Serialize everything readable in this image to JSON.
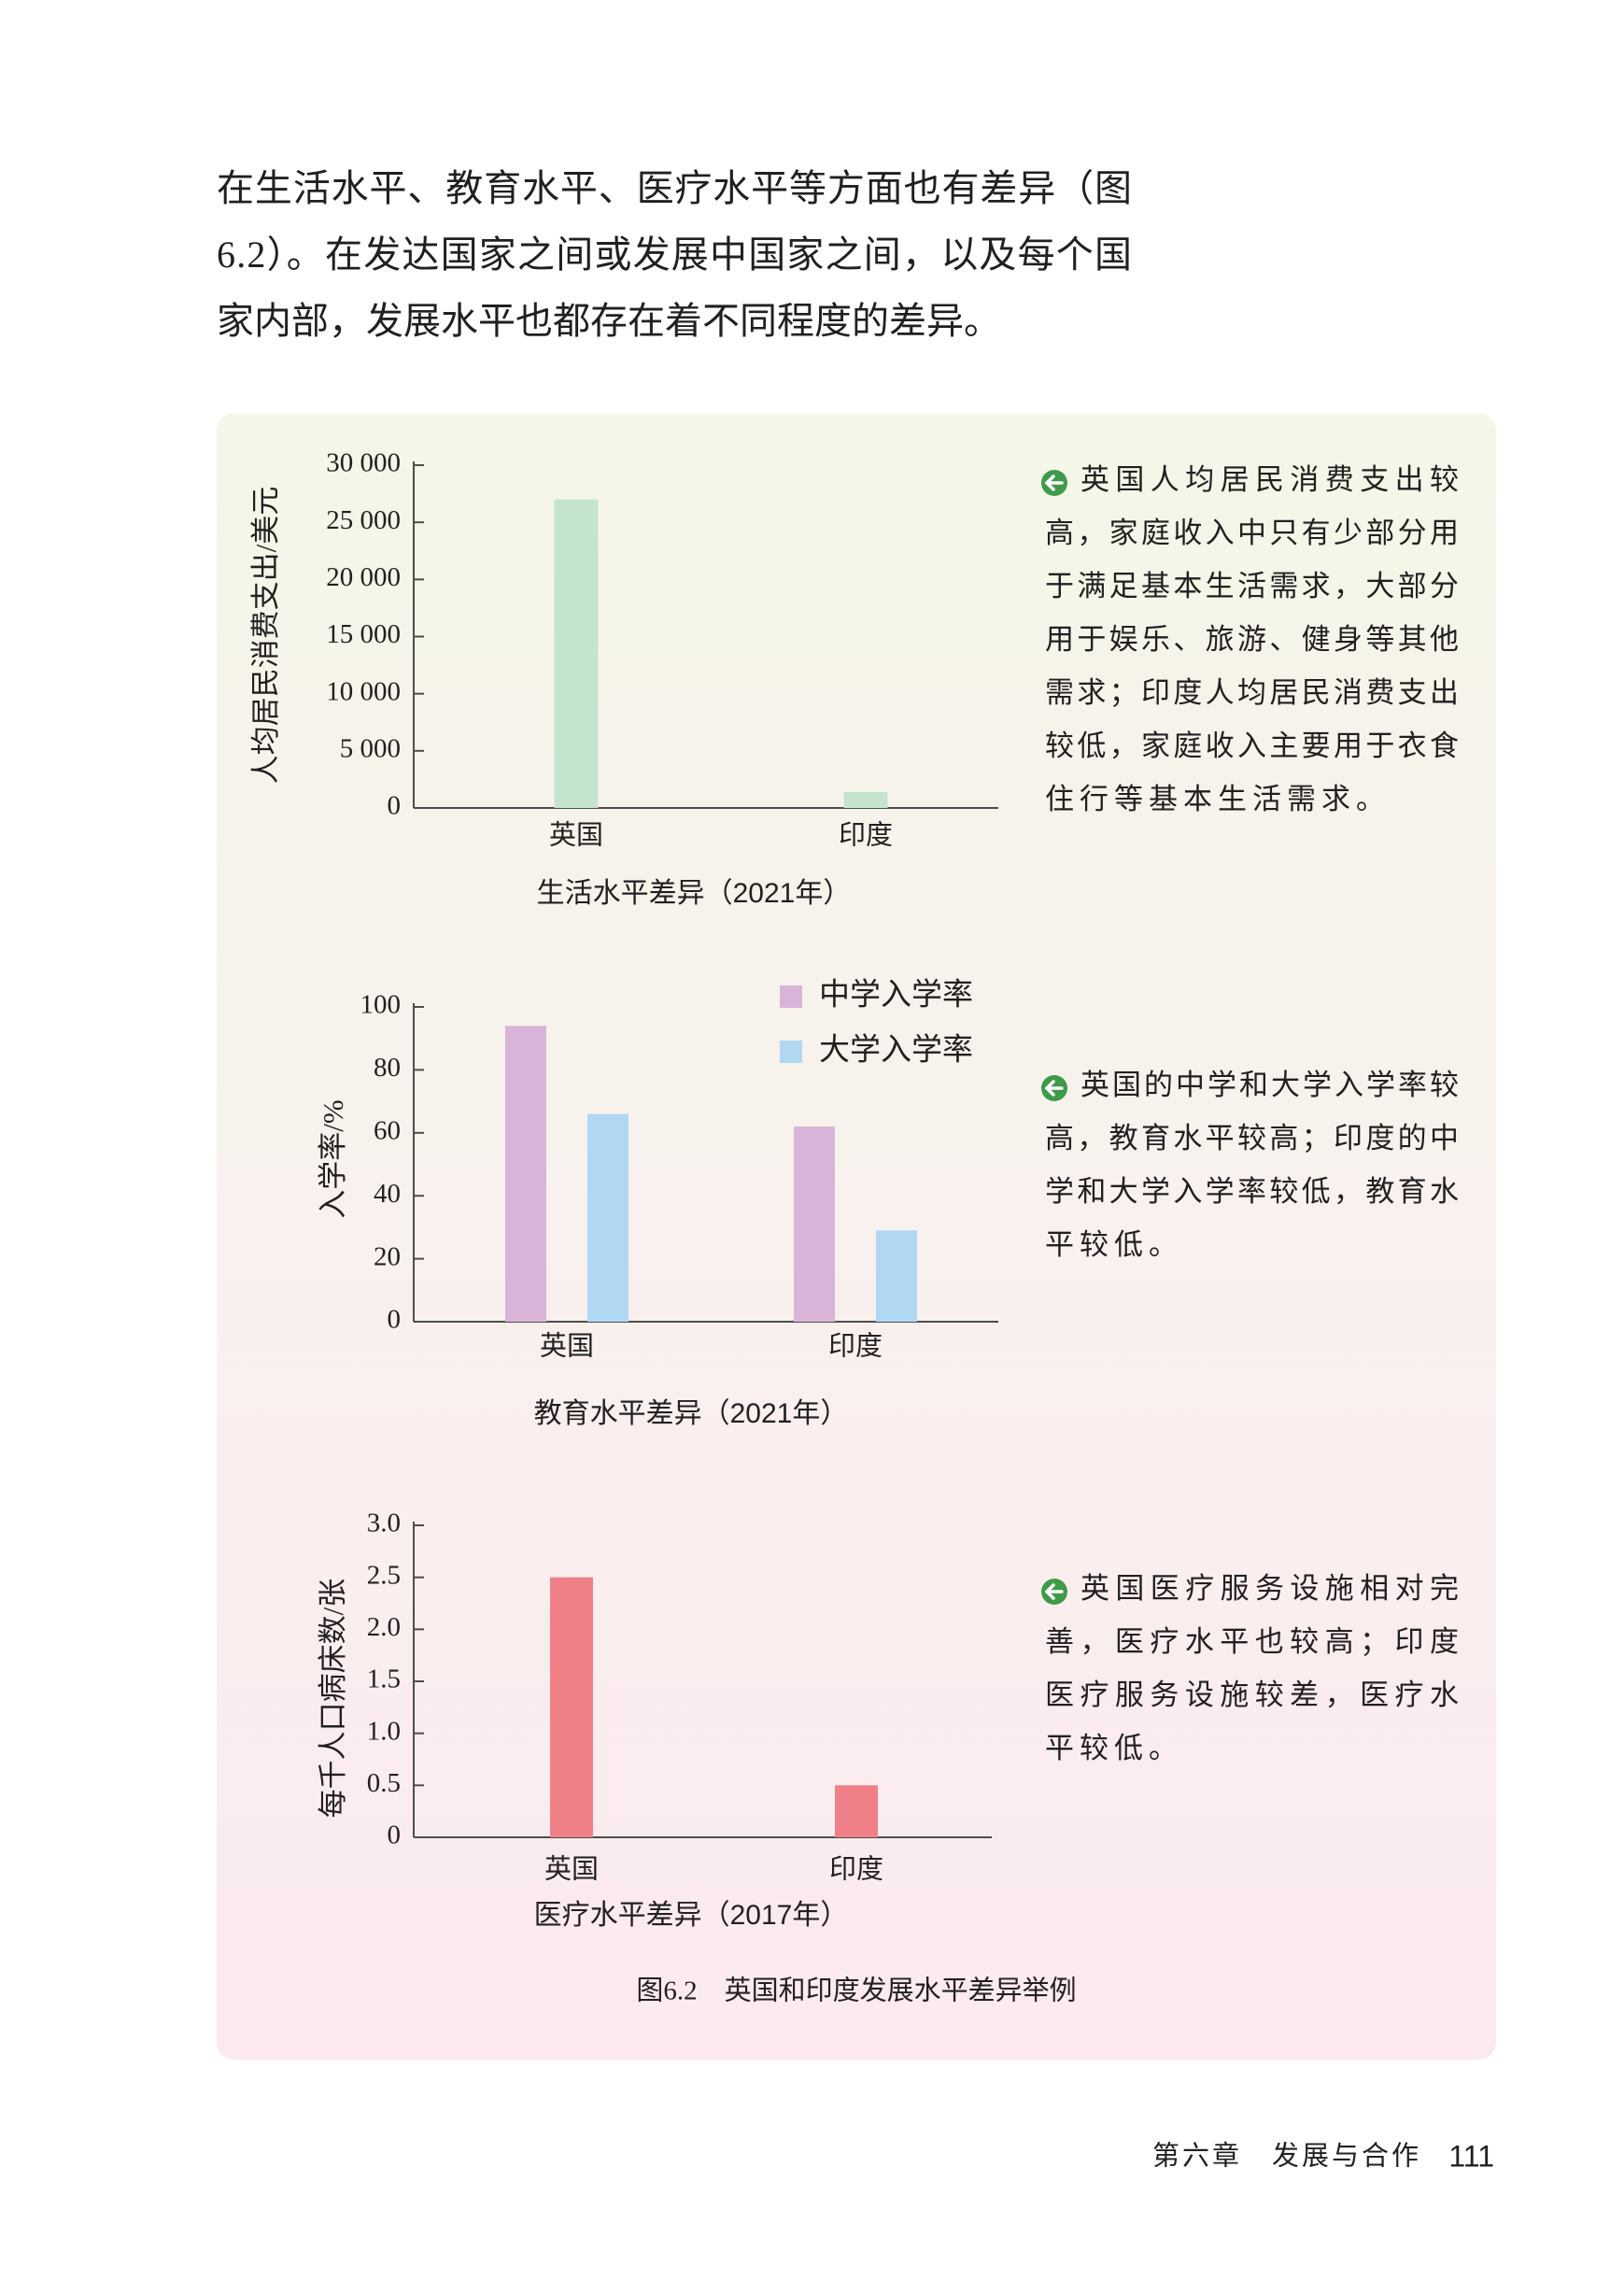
{
  "body_text": [
    "在生活水平、教育水平、医疗水平等方面也有差异（图",
    "6.2）。在发达国家之间或发展中国家之间，以及每个国",
    "家内部，发展水平也都存在着不同程度的差异。"
  ],
  "chart_data": [
    {
      "type": "bar",
      "title": "生活水平差异（2021年）",
      "y_label": "人均居民消费支出/美元",
      "categories": [
        "英国",
        "印度"
      ],
      "values": [
        27000,
        1400
      ],
      "color": "#c4e4cd",
      "ylim": [
        0,
        30000
      ],
      "yticks": [
        0,
        {
          "value": 5000,
          "label": "5 000"
        },
        {
          "value": 10000,
          "label": "10 000"
        },
        {
          "value": 15000,
          "label": "15 000"
        },
        {
          "value": 20000,
          "label": "20 000"
        },
        {
          "value": 25000,
          "label": "25 000"
        },
        {
          "value": 30000,
          "label": "30 000"
        }
      ]
    },
    {
      "type": "bar",
      "title": "教育水平差异（2021年）",
      "y_label": "入学率/%",
      "categories": [
        "英国",
        "印度"
      ],
      "series": [
        {
          "name": "中学入学率",
          "color": "#d8b5d8",
          "values": [
            94,
            62
          ]
        },
        {
          "name": "大学入学率",
          "color": "#b0d8f2",
          "values": [
            66,
            29
          ]
        }
      ],
      "ylim": [
        0,
        100
      ],
      "yticks": [
        0,
        20,
        40,
        60,
        80,
        100
      ]
    },
    {
      "type": "bar",
      "title": "医疗水平差异（2017年）",
      "y_label": "每千人口病床数/张",
      "categories": [
        "英国",
        "印度"
      ],
      "values": [
        2.5,
        0.5
      ],
      "color": "#ef8088",
      "ylim": [
        0,
        3
      ],
      "yticks": [
        0,
        0.5,
        {
          "value": 1,
          "label": "1.0"
        },
        1.5,
        {
          "value": 2,
          "label": "2.0"
        },
        2.5,
        {
          "value": 3,
          "label": "3.0"
        }
      ]
    }
  ],
  "notes": [
    [
      "英国人均居民消费支出较",
      "高，家庭收入中只有少部分用",
      "于满足基本生活需求，大部分",
      "用于娱乐、旅游、健身等其他",
      "需求；印度人均居民消费支出",
      "较低，家庭收入主要用于衣食",
      "住行等基本生活需求。"
    ],
    [
      "英国的中学和大学入学率较",
      "高，教育水平较高；印度的中",
      "学和大学入学率较低，教育水",
      "平较低。"
    ],
    [
      "英国医疗服务设施相对完",
      "善，医疗水平也较高；印度",
      "医疗服务设施较差，医疗水",
      "平较低。"
    ]
  ],
  "caption": "图6.2　英国和印度发展水平差异举例",
  "footer": {
    "chapter": "第六章　发展与合作",
    "page_number": "111"
  }
}
